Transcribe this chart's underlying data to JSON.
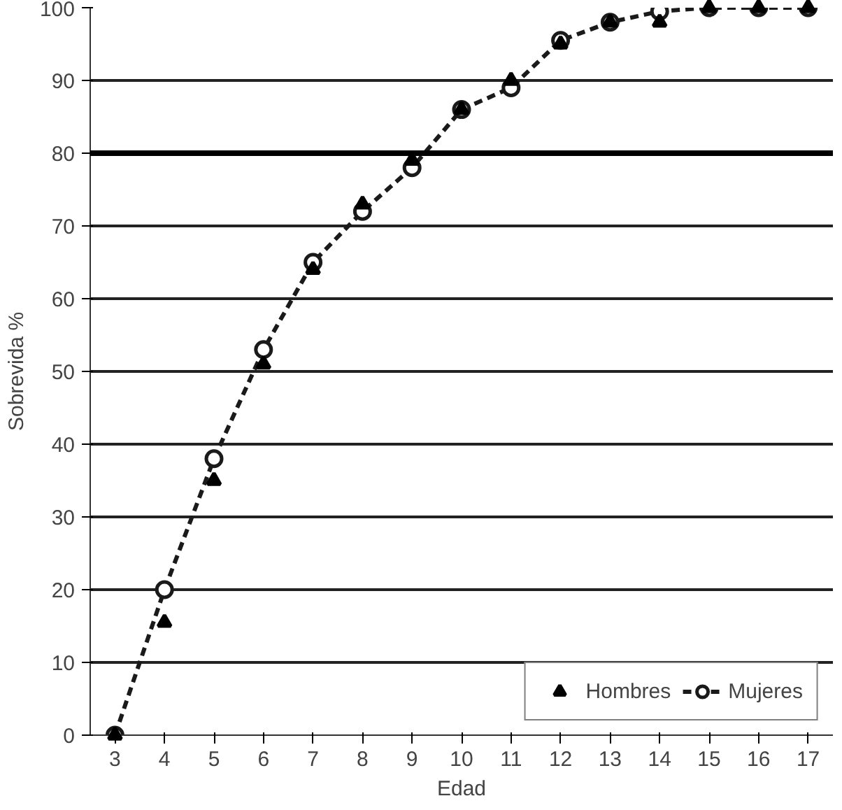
{
  "chart_data": {
    "type": "line",
    "xlabel": "Edad",
    "ylabel": "Sobrevida %",
    "x": [
      3,
      4,
      5,
      6,
      7,
      8,
      9,
      10,
      11,
      12,
      13,
      14,
      15,
      16,
      17
    ],
    "series": [
      {
        "name": "Hombres",
        "type": "scatter",
        "color": "#000000",
        "marker": "triangle",
        "values": [
          0,
          15.5,
          35,
          51,
          64,
          73,
          79,
          86,
          90,
          95,
          98,
          98,
          100,
          100,
          100
        ]
      },
      {
        "name": "Mujeres",
        "color": "#1a1a1a",
        "marker": "circle",
        "values": [
          0,
          20,
          38,
          53,
          65,
          72,
          78,
          86,
          89,
          95.5,
          98,
          99.5,
          100,
          100,
          100
        ]
      }
    ],
    "xlim": [
      2.5,
      17.5
    ],
    "xticks": [
      3,
      4,
      5,
      6,
      7,
      8,
      9,
      10,
      11,
      12,
      13,
      14,
      15,
      16,
      17
    ],
    "ylim": [
      0,
      100
    ],
    "yticks": [
      0,
      10,
      20,
      30,
      40,
      50,
      60,
      70,
      80,
      90,
      100
    ],
    "grid": "y",
    "legend": "bottom right",
    "line_style": "dashed",
    "ref_lines": [
      {
        "axis": "y",
        "value": 80,
        "color": "#000000"
      }
    ]
  }
}
